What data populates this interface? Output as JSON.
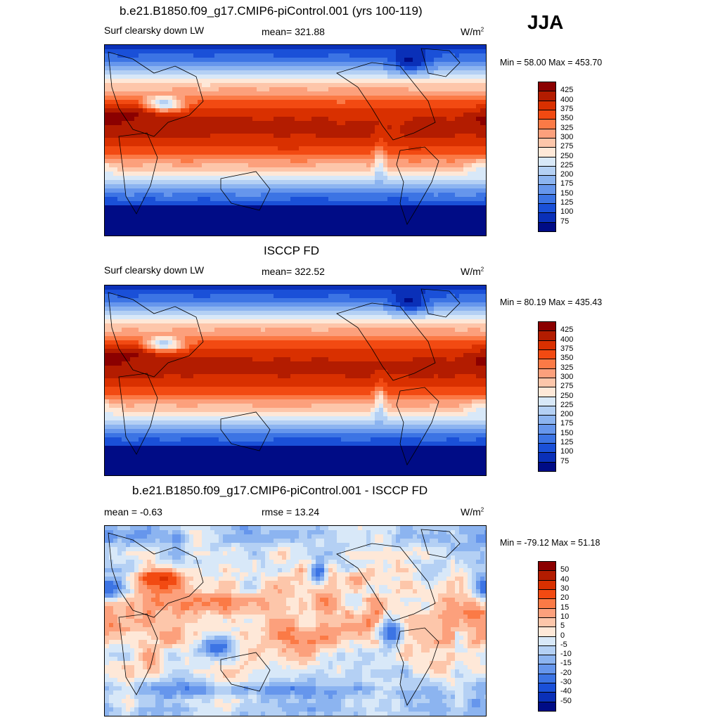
{
  "season": "JJA",
  "panels": [
    {
      "title": "b.e21.B1850.f09_g17.CMIP6-piControl.001 (yrs 100-119)",
      "left_label": "Surf clearsky down LW",
      "center_label": "mean= 321.88",
      "units": "W/m",
      "units_sup": "2",
      "minmax": "Min =  58.00 Max = 453.70",
      "colorbar": {
        "labels": [
          "425",
          "400",
          "375",
          "350",
          "325",
          "300",
          "275",
          "250",
          "225",
          "200",
          "175",
          "150",
          "125",
          "100",
          "75"
        ],
        "colors": [
          "#8b0000",
          "#b31c00",
          "#d93000",
          "#f24a12",
          "#fb7a46",
          "#fca07c",
          "#fdc6aa",
          "#fee8d8",
          "#d8e8f8",
          "#b4d0f4",
          "#8cb4f0",
          "#6696ec",
          "#3c74e4",
          "#1a50d8",
          "#0a30b8",
          "#000c86"
        ]
      },
      "field": "model"
    },
    {
      "title": "ISCCP FD",
      "left_label": "Surf clearsky down LW",
      "center_label": "mean= 322.52",
      "units": "W/m",
      "units_sup": "2",
      "minmax": "Min =  80.19 Max = 435.43",
      "colorbar": {
        "labels": [
          "425",
          "400",
          "375",
          "350",
          "325",
          "300",
          "275",
          "250",
          "225",
          "200",
          "175",
          "150",
          "125",
          "100",
          "75"
        ],
        "colors": [
          "#8b0000",
          "#b31c00",
          "#d93000",
          "#f24a12",
          "#fb7a46",
          "#fca07c",
          "#fdc6aa",
          "#fee8d8",
          "#d8e8f8",
          "#b4d0f4",
          "#8cb4f0",
          "#6696ec",
          "#3c74e4",
          "#1a50d8",
          "#0a30b8",
          "#000c86"
        ]
      },
      "field": "obs"
    },
    {
      "title": "b.e21.B1850.f09_g17.CMIP6-piControl.001 - ISCCP FD",
      "left_label": "mean =  -0.63",
      "center_label": "rmse =  13.24",
      "units": "W/m",
      "units_sup": "2",
      "minmax": "Min = -79.12 Max =  51.18",
      "colorbar": {
        "labels": [
          "50",
          "40",
          "30",
          "20",
          "15",
          "10",
          "5",
          "0",
          "-5",
          "-10",
          "-15",
          "-20",
          "-30",
          "-40",
          "-50"
        ],
        "colors": [
          "#8b0000",
          "#b31c00",
          "#d93000",
          "#f24a12",
          "#fb7a46",
          "#fca07c",
          "#fdc6aa",
          "#fee8d8",
          "#d8e8f8",
          "#b4d0f4",
          "#8cb4f0",
          "#6696ec",
          "#3c74e4",
          "#1a50d8",
          "#0a30b8",
          "#000c86"
        ]
      },
      "field": "diff"
    }
  ]
}
